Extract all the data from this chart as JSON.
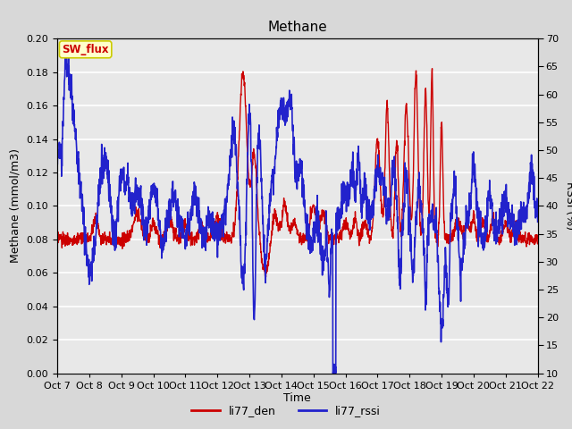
{
  "title": "Methane",
  "xlabel": "Time",
  "ylabel_left": "Methane (mmol/m3)",
  "ylabel_right": "RSSI (%)",
  "ylim_left": [
    0.0,
    0.2
  ],
  "ylim_right": [
    10,
    70
  ],
  "yticks_left": [
    0.0,
    0.02,
    0.04,
    0.06,
    0.08,
    0.1,
    0.12,
    0.14,
    0.16,
    0.18,
    0.2
  ],
  "yticks_right": [
    10,
    15,
    20,
    25,
    30,
    35,
    40,
    45,
    50,
    55,
    60,
    65,
    70
  ],
  "xtick_labels": [
    "Oct 7",
    "Oct 8",
    "Oct 9",
    "Oct 10",
    "Oct 11",
    "Oct 12",
    "Oct 13",
    "Oct 14",
    "Oct 15",
    "Oct 16",
    "Oct 17",
    "Oct 18",
    "Oct 19",
    "Oct 20",
    "Oct 21",
    "Oct 22"
  ],
  "bg_color": "#e8e8e8",
  "grid_color": "#ffffff",
  "line_color_red": "#cc0000",
  "line_color_blue": "#2222cc",
  "legend_label_red": "li77_den",
  "legend_label_blue": "li77_rssi",
  "sw_flux_bg": "#ffffcc",
  "sw_flux_border": "#cccc00",
  "sw_flux_text": "#cc0000",
  "sw_flux_label": "SW_flux",
  "fig_bg_color": "#d8d8d8",
  "title_fontsize": 11,
  "axis_label_fontsize": 9,
  "tick_fontsize": 8
}
